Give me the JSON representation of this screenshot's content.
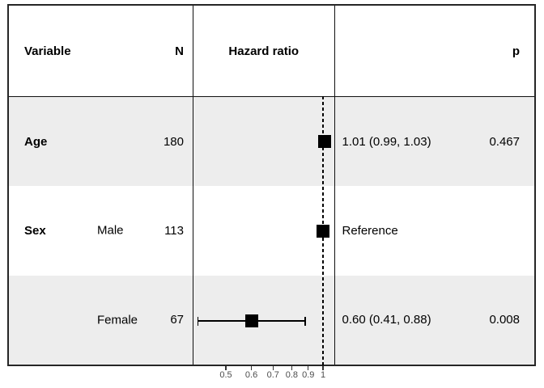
{
  "table": {
    "header": {
      "variable": "Variable",
      "n": "N",
      "hazard_ratio": "Hazard ratio",
      "p": "p"
    },
    "rows": [
      {
        "variable": "Age",
        "level": "",
        "n": "180",
        "estimate": "1.01 (0.99, 1.03)",
        "p": "0.467"
      },
      {
        "variable": "Sex",
        "level": "Male",
        "n": "113",
        "estimate": "Reference",
        "p": ""
      },
      {
        "variable": "",
        "level": "Female",
        "n": "67",
        "estimate": "0.60 (0.41, 0.88)",
        "p": "0.008"
      }
    ]
  },
  "chart_data": {
    "type": "scatter",
    "subtype": "forest_plot",
    "title": "Hazard ratio",
    "x_scale": "log",
    "x_ticks": [
      0.5,
      0.6,
      0.7,
      0.8,
      0.9,
      1
    ],
    "x_range": [
      0.4,
      1.1
    ],
    "reference_line": 1,
    "grid": false,
    "rows": [
      {
        "label": "Age",
        "n": 180,
        "hr": 1.01,
        "ci_low": 0.99,
        "ci_high": 1.03,
        "p": 0.467,
        "reference": false
      },
      {
        "label": "Sex Male",
        "n": 113,
        "hr": 1.0,
        "ci_low": null,
        "ci_high": null,
        "p": null,
        "reference": true
      },
      {
        "label": "Sex Female",
        "n": 67,
        "hr": 0.6,
        "ci_low": 0.41,
        "ci_high": 0.88,
        "p": 0.008,
        "reference": false
      }
    ],
    "colors": {
      "marker": "#000000",
      "row_shade": "#ededed",
      "border": "#262626",
      "tick_text": "#4d4d4d"
    }
  }
}
